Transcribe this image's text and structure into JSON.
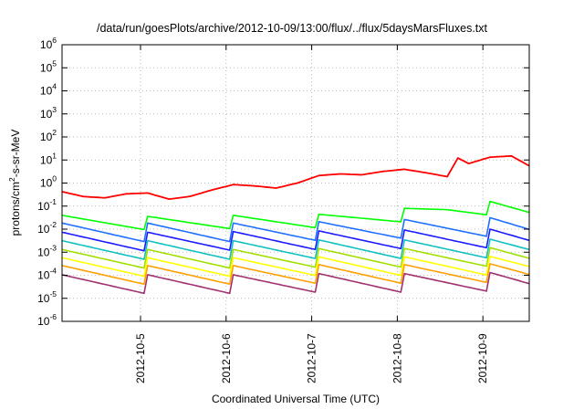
{
  "chart_data": {
    "type": "line",
    "title": "/data/run/goesPlots/archive/2012-10-09/13:00/flux/../flux/5daysMarsFluxes.txt",
    "xlabel": "Coordinated Universal Time (UTC)",
    "ylabel": {
      "base": "protons/cm",
      "exp": "2",
      "rest": "-s-sr-MeV"
    },
    "y_scale": "log",
    "ylim": [
      1e-06,
      1000000.0
    ],
    "xlim": [
      "2012-10-04 02:00",
      "2012-10-09 13:00"
    ],
    "y_ticks": [
      {
        "base": "10",
        "exp": "-6",
        "value": 1e-06
      },
      {
        "base": "10",
        "exp": "-5",
        "value": 1e-05
      },
      {
        "base": "10",
        "exp": "-4",
        "value": 0.0001
      },
      {
        "base": "10",
        "exp": "-3",
        "value": 0.001
      },
      {
        "base": "10",
        "exp": "-2",
        "value": 0.01
      },
      {
        "base": "10",
        "exp": "-1",
        "value": 0.1
      },
      {
        "base": "10",
        "exp": "0",
        "value": 1
      },
      {
        "base": "10",
        "exp": "1",
        "value": 10
      },
      {
        "base": "10",
        "exp": "2",
        "value": 100
      },
      {
        "base": "10",
        "exp": "3",
        "value": 1000
      },
      {
        "base": "10",
        "exp": "4",
        "value": 10000
      },
      {
        "base": "10",
        "exp": "5",
        "value": 100000
      },
      {
        "base": "10",
        "exp": "6",
        "value": 1000000
      }
    ],
    "x_ticks": [
      "2012-10-5",
      "2012-10-6",
      "2012-10-7",
      "2012-10-8",
      "2012-10-9"
    ],
    "grid": true,
    "series": [
      {
        "color": "#ff0000",
        "x": [
          "2012-10-04 02:00",
          "2012-10-04 08:00",
          "2012-10-04 14:00",
          "2012-10-04 20:00",
          "2012-10-05 02:00",
          "2012-10-05 08:00",
          "2012-10-05 14:00",
          "2012-10-05 20:00",
          "2012-10-06 02:00",
          "2012-10-06 08:00",
          "2012-10-06 14:00",
          "2012-10-06 20:00",
          "2012-10-07 02:00",
          "2012-10-07 08:00",
          "2012-10-07 14:00",
          "2012-10-07 20:00",
          "2012-10-08 02:00",
          "2012-10-08 08:00",
          "2012-10-08 14:00",
          "2012-10-08 17:00",
          "2012-10-08 20:00",
          "2012-10-09 02:00",
          "2012-10-09 08:00",
          "2012-10-09 13:00"
        ],
        "values": [
          0.32,
          0.26,
          0.3,
          0.34,
          0.28,
          0.2,
          0.35,
          0.5,
          0.65,
          0.75,
          0.8,
          1.0,
          1.6,
          2.5,
          3.0,
          3.2,
          3.0,
          2.8,
          2.5,
          14,
          7,
          10,
          15,
          7
        ]
      },
      {
        "color": "#00ff00",
        "x": [
          "2012-10-04 02:00",
          "2012-10-05 02:00",
          "2012-10-06 02:00",
          "2012-10-07 02:00",
          "2012-10-07 14:00",
          "2012-10-08 02:00",
          "2012-10-08 14:00",
          "2012-10-09 02:00",
          "2012-10-09 13:00"
        ],
        "values": [
          0.02,
          0.018,
          0.02,
          0.022,
          0.03,
          0.04,
          0.07,
          0.08,
          0.05
        ]
      },
      {
        "color": "#1f6fff",
        "x": [
          "2012-10-04 02:00",
          "2012-10-05 02:00",
          "2012-10-06 02:00",
          "2012-10-07 02:00",
          "2012-10-08 02:00",
          "2012-10-09 02:00",
          "2012-10-09 13:00"
        ],
        "values": [
          0.007,
          0.007,
          0.007,
          0.008,
          0.01,
          0.012,
          0.009
        ]
      },
      {
        "color": "#1a1aff",
        "x": [
          "2012-10-04 02:00",
          "2012-10-05 02:00",
          "2012-10-06 02:00",
          "2012-10-07 02:00",
          "2012-10-08 02:00",
          "2012-10-09 02:00",
          "2012-10-09 13:00"
        ],
        "values": [
          0.0028,
          0.0028,
          0.003,
          0.0032,
          0.0035,
          0.0038,
          0.003
        ]
      },
      {
        "color": "#11c0c0",
        "x": [
          "2012-10-04 02:00",
          "2012-10-05 02:00",
          "2012-10-06 02:00",
          "2012-10-07 02:00",
          "2012-10-08 02:00",
          "2012-10-09 02:00",
          "2012-10-09 13:00"
        ],
        "values": [
          0.0012,
          0.0012,
          0.0012,
          0.0013,
          0.0013,
          0.0014,
          0.0012
        ]
      },
      {
        "color": "#a0e000",
        "x": [
          "2012-10-04 02:00",
          "2012-10-05 02:00",
          "2012-10-06 02:00",
          "2012-10-07 02:00",
          "2012-10-08 02:00",
          "2012-10-09 02:00",
          "2012-10-09 13:00"
        ],
        "values": [
          0.0005,
          0.0005,
          0.0005,
          0.00055,
          0.00055,
          0.0006,
          0.0005
        ]
      },
      {
        "color": "#ffff00",
        "x": [
          "2012-10-04 02:00",
          "2012-10-05 02:00",
          "2012-10-06 02:00",
          "2012-10-07 02:00",
          "2012-10-08 02:00",
          "2012-10-09 02:00",
          "2012-10-09 13:00"
        ],
        "values": [
          0.00022,
          0.00022,
          0.00022,
          0.00024,
          0.00024,
          0.00025,
          0.00022
        ]
      },
      {
        "color": "#ffa000",
        "x": [
          "2012-10-04 02:00",
          "2012-10-05 02:00",
          "2012-10-06 02:00",
          "2012-10-07 02:00",
          "2012-10-08 02:00",
          "2012-10-09 02:00",
          "2012-10-09 13:00"
        ],
        "values": [
          0.0001,
          0.0001,
          0.0001,
          0.00011,
          0.00011,
          0.00012,
          0.0001
        ]
      },
      {
        "color": "#a0306f",
        "x": [
          "2012-10-04 02:00",
          "2012-10-05 02:00",
          "2012-10-06 02:00",
          "2012-10-07 02:00",
          "2012-10-08 02:00",
          "2012-10-09 02:00",
          "2012-10-09 13:00"
        ],
        "values": [
          4e-05,
          4e-05,
          4e-05,
          4.5e-05,
          4.5e-05,
          5e-05,
          4e-05
        ]
      }
    ]
  }
}
